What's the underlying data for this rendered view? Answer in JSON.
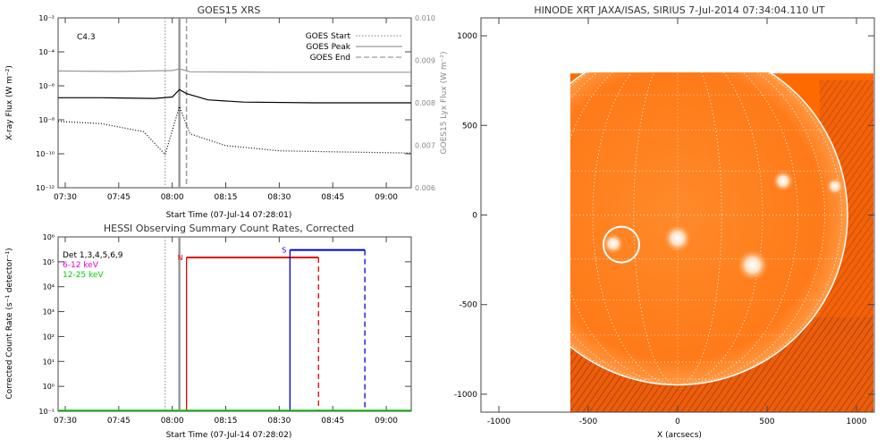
{
  "chart_data": [
    {
      "type": "line",
      "title": "GOES15 XRS",
      "xlabel": "Start Time (07-Jul-14 07:28:01)",
      "ylabel": "X-ray Flux (W m⁻²)",
      "y2label": "GOES15 Lyx Flux (W m⁻²)",
      "annotation": "C4.3",
      "xlim": [
        "07:28",
        "09:07"
      ],
      "xticks": [
        "07:30",
        "07:45",
        "08:00",
        "08:15",
        "08:30",
        "08:45",
        "09:00"
      ],
      "ylim": [
        1e-12,
        0.01
      ],
      "yscale": "log",
      "yticks": [
        "10⁻¹²",
        "10⁻¹⁰",
        "10⁻⁸",
        "10⁻⁶",
        "10⁻⁴",
        "10⁻²"
      ],
      "y2lim": [
        0.006,
        0.01
      ],
      "y2ticks": [
        "0.006",
        "0.007",
        "0.008",
        "0.009",
        "0.010"
      ],
      "legend_position": "top-right",
      "legend": [
        {
          "label": "GOES Start",
          "style": "dotted"
        },
        {
          "label": "GOES Peak",
          "style": "solid"
        },
        {
          "label": "GOES End",
          "style": "dashed"
        }
      ],
      "markers": {
        "start": "07:58",
        "peak": "08:02",
        "end": "08:04"
      },
      "series": [
        {
          "role": "long-channel",
          "color": "#000000",
          "style": "solid",
          "x": [
            "07:28",
            "07:40",
            "07:55",
            "08:00",
            "08:02",
            "08:04",
            "08:10",
            "08:20",
            "08:40",
            "09:07"
          ],
          "y": [
            2e-07,
            2e-07,
            1.8e-07,
            2.2e-07,
            6e-07,
            3.5e-07,
            1.5e-07,
            1.1e-07,
            1e-07,
            1e-07
          ]
        },
        {
          "role": "short-channel",
          "color": "#000000",
          "style": "dotted",
          "x": [
            "07:28",
            "07:40",
            "07:52",
            "07:58",
            "08:02",
            "08:05",
            "08:15",
            "08:30",
            "08:45",
            "09:07"
          ],
          "y": [
            8e-09,
            6e-09,
            2e-09,
            9e-11,
            6e-08,
            1.5e-09,
            3e-10,
            1.5e-10,
            1.3e-10,
            1.1e-10
          ]
        },
        {
          "role": "lyman-alpha",
          "color": "#999999",
          "style": "solid",
          "axis": "y2",
          "x": [
            "07:28",
            "07:45",
            "08:00",
            "08:02",
            "08:05",
            "08:30",
            "09:07"
          ],
          "y": [
            0.00875,
            0.00874,
            0.00876,
            0.0088,
            0.00873,
            0.00872,
            0.00872
          ]
        }
      ]
    },
    {
      "type": "line",
      "title": "HESSI Observing Summary Count Rates, Corrected",
      "xlabel": "Start Time (07-Jul-14 07:28:02)",
      "ylabel": "Corrected Count Rate (s⁻¹ detector⁻¹)",
      "xlim": [
        "07:28",
        "09:07"
      ],
      "xticks": [
        "07:30",
        "07:45",
        "08:00",
        "08:15",
        "08:30",
        "08:45",
        "09:00"
      ],
      "ylim": [
        0.1,
        1000000.0
      ],
      "yscale": "log",
      "yticks": [
        "10⁻¹",
        "10⁰",
        "10¹",
        "10²",
        "10³",
        "10⁴",
        "10⁵",
        "10⁶"
      ],
      "legend_position": "top-left",
      "legend": [
        {
          "label": "Det 1,3,4,5,6,9",
          "color": "#000000"
        },
        {
          "label": "6-12 keV",
          "color": "#e000e0"
        },
        {
          "label": "12-25 keV",
          "color": "#00d000"
        }
      ],
      "markers": {
        "goes_start": "07:58",
        "goes_peak": "08:02"
      },
      "intervals": [
        {
          "label": "N",
          "color": "#e00000",
          "start": "08:04",
          "end": "08:41",
          "level": 150000
        },
        {
          "label": "S",
          "color": "#0000d0",
          "start": "08:33",
          "end": "08:54",
          "level": 300000
        }
      ],
      "series": [
        {
          "name": "12-25 keV",
          "color": "#00d000",
          "x": [
            "07:28",
            "09:07"
          ],
          "y": [
            0.1,
            0.1
          ]
        }
      ]
    },
    {
      "type": "heatmap",
      "title": "HINODE XRT JAXA/ISAS, SIRIUS  7-Jul-2014 07:34:04.110 UT",
      "xlabel": "X (arcsecs)",
      "ylabel": "",
      "xlim": [
        -1100,
        1100
      ],
      "ylim": [
        -1100,
        1100
      ],
      "xticks": [
        "-1000",
        "-500",
        "0",
        "500",
        "1000"
      ],
      "yticks": [
        "-1000",
        "-500",
        "0",
        "500",
        "1000"
      ],
      "image_extent": {
        "x": [
          -600,
          1100
        ],
        "y": [
          -1100,
          790
        ]
      },
      "limb_radius": 950,
      "grid": "dotted heliographic grid",
      "highlight_circle": {
        "x": -315,
        "y": -165,
        "r": 100
      },
      "bright_regions": [
        {
          "x": 590,
          "y": 190,
          "r": 60
        },
        {
          "x": 880,
          "y": 160,
          "r": 50
        },
        {
          "x": 0,
          "y": -130,
          "r": 80
        },
        {
          "x": -360,
          "y": -160,
          "r": 60
        },
        {
          "x": 420,
          "y": -280,
          "r": 90
        }
      ],
      "colors": {
        "background": "#ff6a00",
        "limb": "#ffffff",
        "hot": "#ffd7b0"
      }
    }
  ]
}
